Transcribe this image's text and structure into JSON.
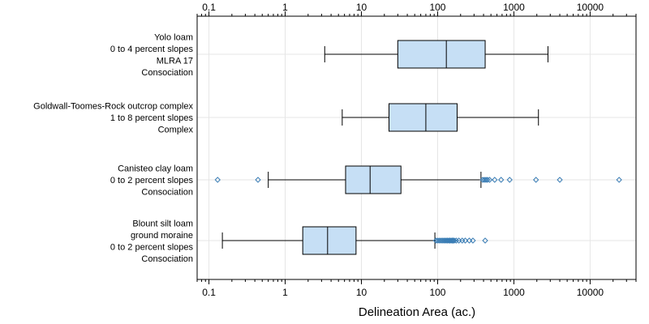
{
  "chart_data": {
    "type": "boxplot",
    "orientation": "horizontal",
    "xscale": "log",
    "xlabel": "Delineation Area (ac.)",
    "xlim": [
      0.07,
      40000
    ],
    "xticks": [
      {
        "value": 0.1,
        "label": "0.1"
      },
      {
        "value": 1,
        "label": "1"
      },
      {
        "value": 10,
        "label": "10"
      },
      {
        "value": 100,
        "label": "100"
      },
      {
        "value": 1000,
        "label": "1000"
      },
      {
        "value": 10000,
        "label": "10000"
      }
    ],
    "grid": true,
    "box_fill": "#c6dff5",
    "box_stroke": "#000000",
    "outlier_color": "#3a7db5",
    "categories": [
      {
        "lines": [
          "Yolo loam",
          "0 to 4 percent slopes",
          "MLRA 17",
          "Consociation"
        ],
        "whisker_low": 3.3,
        "q1": 30,
        "median": 130,
        "q3": 420,
        "whisker_high": 2800,
        "outliers": []
      },
      {
        "lines": [
          "Goldwall-Toomes-Rock outcrop complex",
          "1 to 8 percent slopes",
          "Complex"
        ],
        "whisker_low": 5.6,
        "q1": 23,
        "median": 70,
        "q3": 180,
        "whisker_high": 2100,
        "outliers": []
      },
      {
        "lines": [
          "Canisteo clay loam",
          "0 to 2 percent slopes",
          "Consociation"
        ],
        "whisker_low": 0.6,
        "q1": 6.2,
        "median": 13,
        "q3": 33,
        "whisker_high": 370,
        "outliers": [
          0.13,
          0.44,
          390,
          410,
          430,
          450,
          480,
          560,
          680,
          880,
          1950,
          4000,
          24000
        ]
      },
      {
        "lines": [
          "Blount silt loam",
          "ground moraine",
          "0 to 2 percent slopes",
          "Consociation"
        ],
        "whisker_low": 0.15,
        "q1": 1.7,
        "median": 3.6,
        "q3": 8.5,
        "whisker_high": 92,
        "outliers": [
          95,
          100,
          105,
          110,
          115,
          120,
          125,
          130,
          135,
          140,
          145,
          150,
          155,
          160,
          165,
          175,
          190,
          210,
          230,
          260,
          290,
          420
        ]
      }
    ]
  }
}
